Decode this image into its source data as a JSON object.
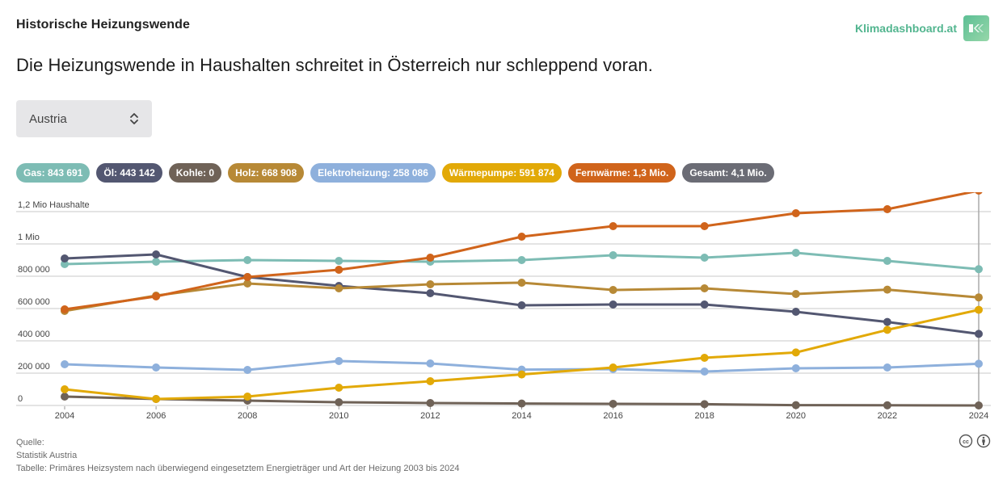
{
  "header": {
    "kicker": "Historische Heizungswende",
    "headline": "Die Heizungswende in Haushalten schreitet in Österreich nur schleppend voran.",
    "brand": "Klimadashboard.at",
    "brand_icon": "klimadashboard-logo-icon"
  },
  "region_select": {
    "value": "Austria",
    "icon": "chevron-up-down-icon"
  },
  "legend_pills": [
    {
      "label": "Gas: 843 691",
      "color": "#7dbcb4"
    },
    {
      "label": "Öl: 443 142",
      "color": "#535771"
    },
    {
      "label": "Kohle: 0",
      "color": "#6f6257"
    },
    {
      "label": "Holz: 668 908",
      "color": "#b78936"
    },
    {
      "label": "Elektroheizung: 258 086",
      "color": "#8eb0dc"
    },
    {
      "label": "Wärmepumpe: 591 874",
      "color": "#e2a907"
    },
    {
      "label": "Fernwärme: 1,3 Mio.",
      "color": "#d0641b"
    },
    {
      "label": "Gesamt: 4,1 Mio.",
      "color": "#6b6c75"
    }
  ],
  "chart_data": {
    "type": "line",
    "title": "Historische Heizungswende",
    "ylabel": "Haushalte",
    "xlabel": "",
    "x": [
      2004,
      2006,
      2008,
      2010,
      2012,
      2014,
      2016,
      2018,
      2020,
      2022,
      2024
    ],
    "x_tick_labels": [
      "2004",
      "2006",
      "2008",
      "2010",
      "2012",
      "2014",
      "2016",
      "2018",
      "2020",
      "2022",
      "2024"
    ],
    "ylim": [
      0,
      1200000
    ],
    "y_ticks": [
      0,
      200000,
      400000,
      600000,
      800000,
      1000000,
      1200000
    ],
    "y_tick_labels": [
      "0",
      "200 000",
      "400 000",
      "600 000",
      "800 000",
      "1 Mio",
      "1,2 Mio  Haushalte"
    ],
    "grid": true,
    "legend": "top",
    "hover_year": 2024,
    "series": [
      {
        "name": "Gas",
        "color": "#7dbcb4",
        "values": [
          875000,
          890000,
          900000,
          895000,
          890000,
          900000,
          930000,
          915000,
          945000,
          895000,
          843691
        ]
      },
      {
        "name": "Öl",
        "color": "#535771",
        "values": [
          910000,
          935000,
          795000,
          740000,
          695000,
          620000,
          625000,
          625000,
          580000,
          517000,
          443142
        ]
      },
      {
        "name": "Kohle",
        "color": "#6f6257",
        "values": [
          55000,
          40000,
          30000,
          20000,
          15000,
          12000,
          10000,
          8000,
          2000,
          1000,
          0
        ]
      },
      {
        "name": "Holz",
        "color": "#b78936",
        "values": [
          585000,
          680000,
          755000,
          725000,
          750000,
          760000,
          715000,
          725000,
          690000,
          717000,
          668908
        ]
      },
      {
        "name": "Elektroheizung",
        "color": "#8eb0dc",
        "values": [
          255000,
          235000,
          220000,
          275000,
          260000,
          222000,
          225000,
          210000,
          230000,
          235000,
          258086
        ]
      },
      {
        "name": "Wärmepumpe",
        "color": "#e2a907",
        "values": [
          100000,
          40000,
          55000,
          110000,
          150000,
          192000,
          235000,
          295000,
          328000,
          468000,
          591874
        ]
      },
      {
        "name": "Fernwärme",
        "color": "#d0641b",
        "values": [
          595000,
          675000,
          795000,
          840000,
          915000,
          1045000,
          1110000,
          1110000,
          1190000,
          1215000,
          1330000
        ]
      }
    ],
    "totals": {
      "Gesamt": "4,1 Mio."
    }
  },
  "footer": {
    "source_label": "Quelle:",
    "source_name": "Statistik Austria",
    "table_note": "Tabelle: Primäres Heizsystem nach überwiegend eingesetztem Energieträger und Art der Heizung 2003 bis 2024"
  },
  "license_icons": [
    "creative-commons-icon",
    "attribution-icon"
  ]
}
